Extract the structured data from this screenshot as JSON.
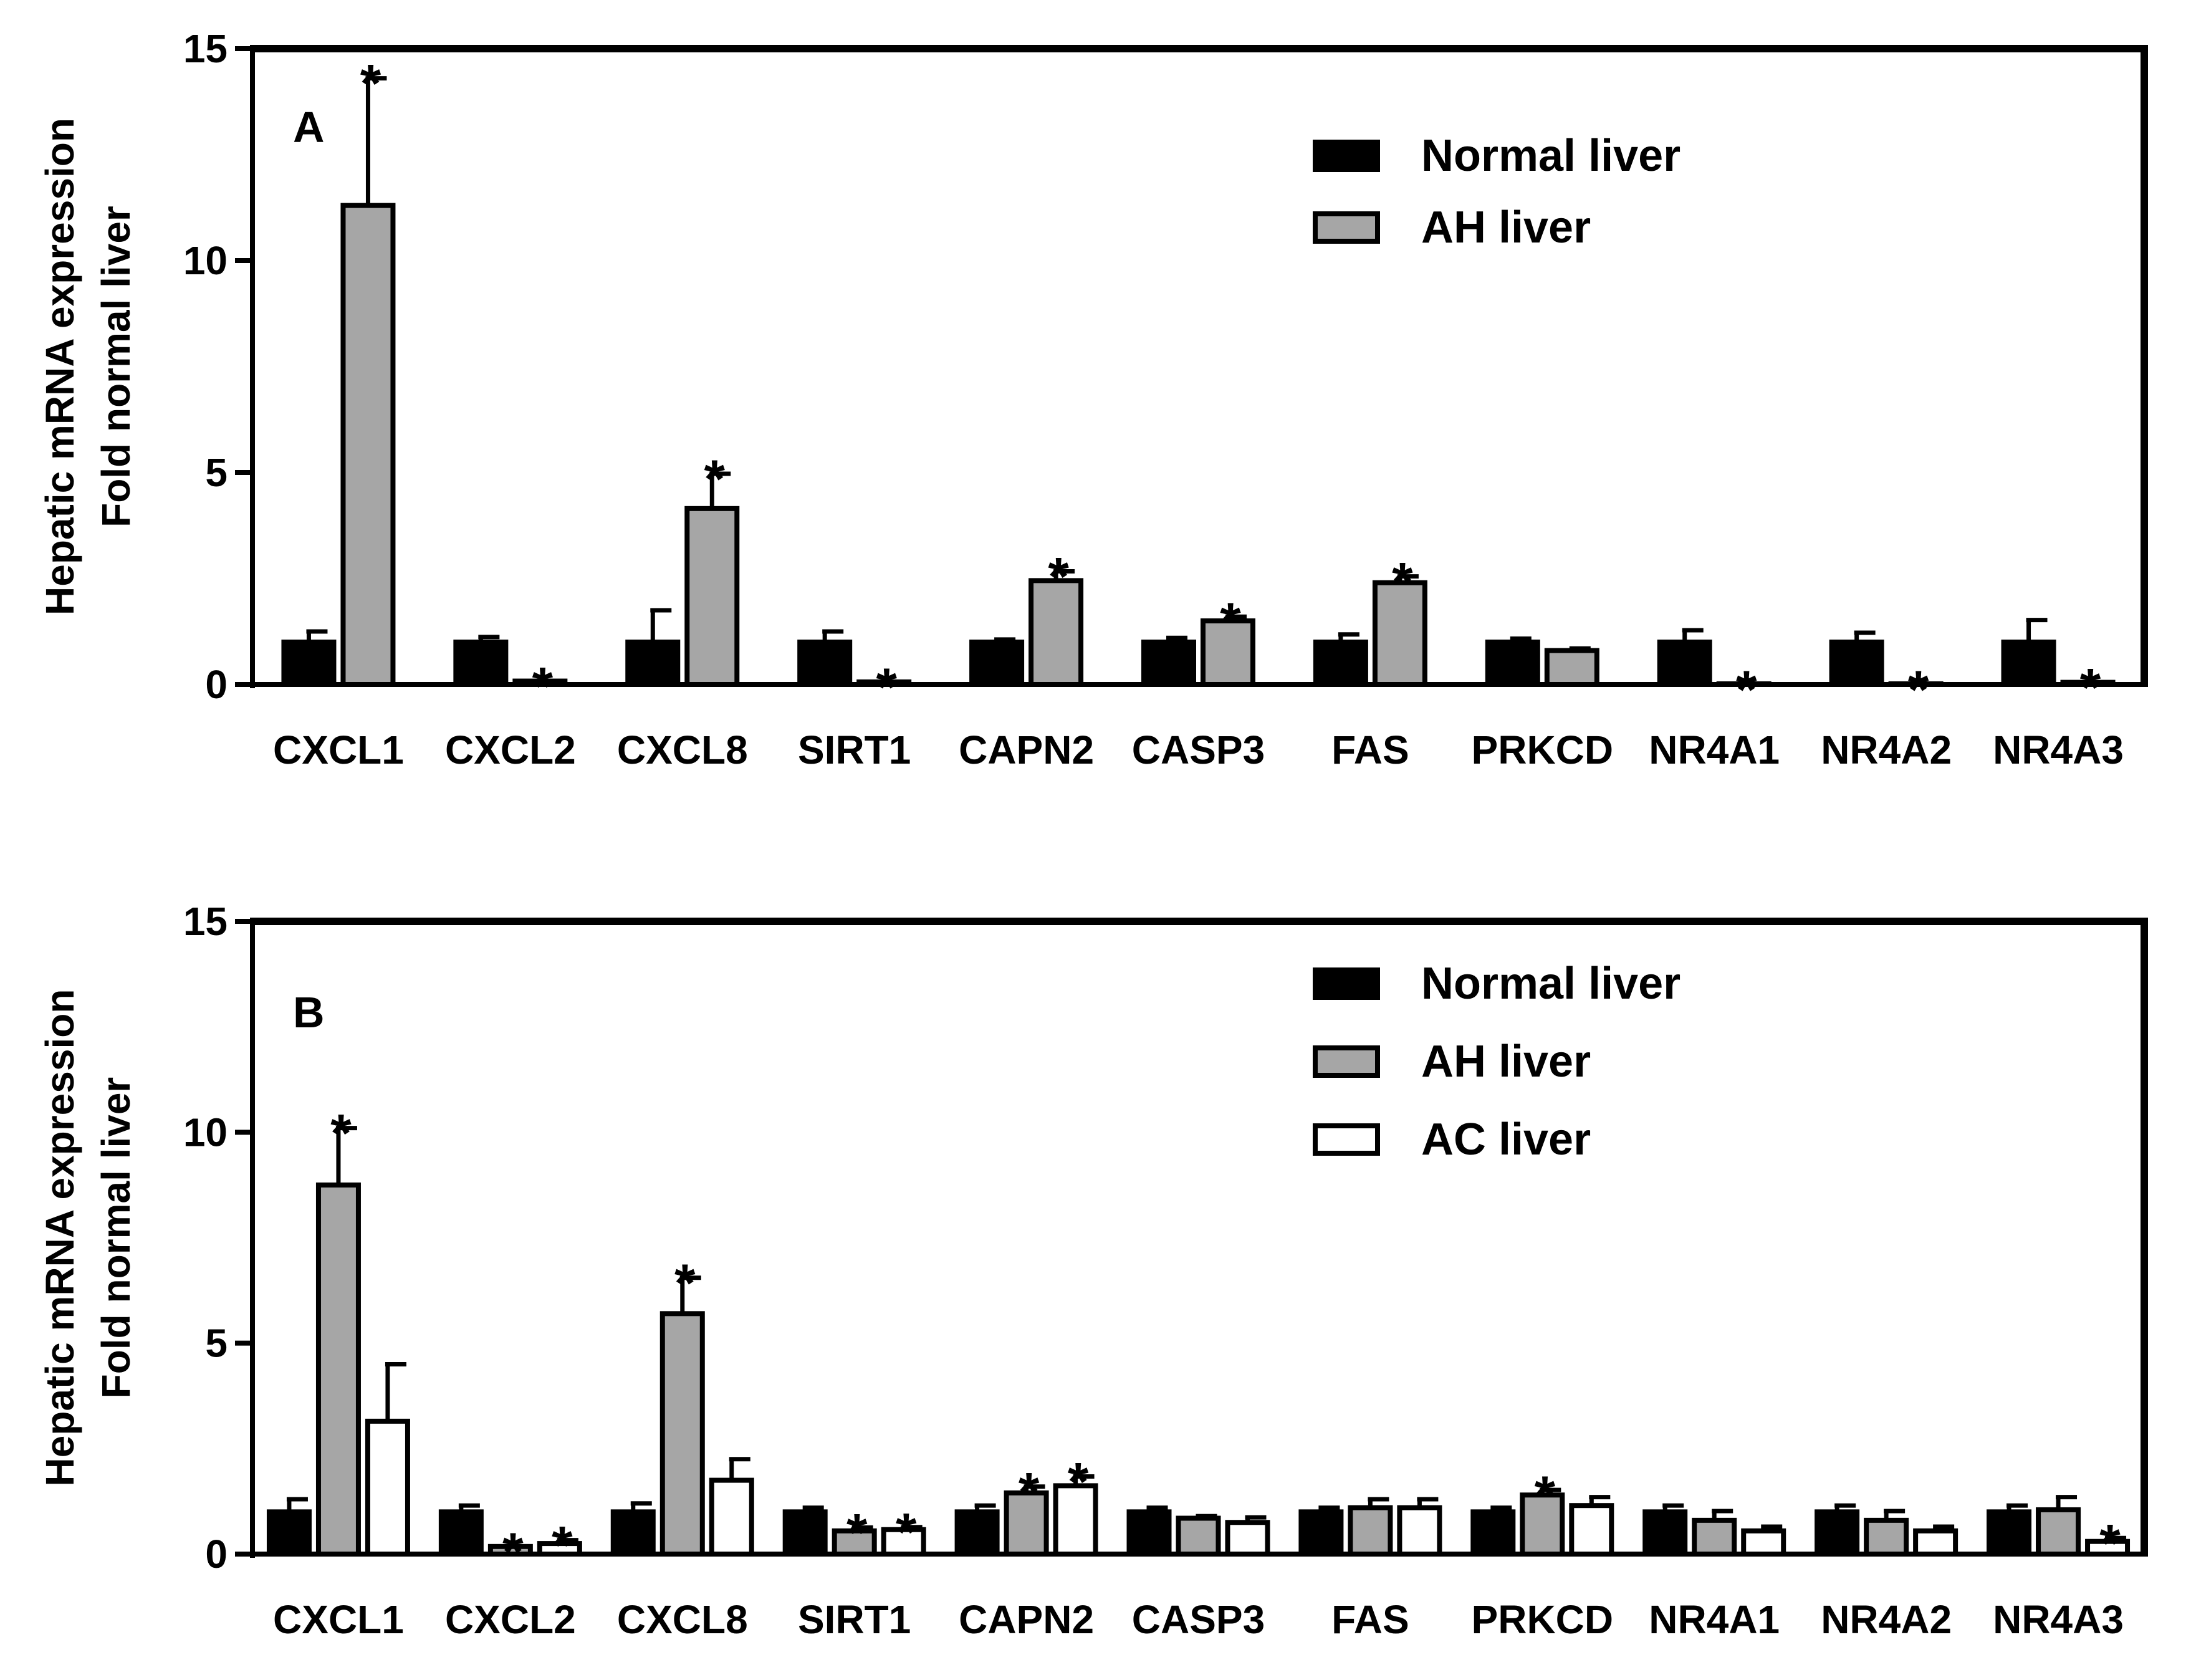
{
  "chart_data": [
    {
      "type": "bar",
      "panel_label": "A",
      "ylabel_line1": "Hepatic mRNA expression",
      "ylabel_line2": "Fold normal liver",
      "ylim": [
        0,
        15
      ],
      "yticks": [
        "0",
        "5",
        "10",
        "15"
      ],
      "categories": [
        "CXCL1",
        "CXCL2",
        "CXCL8",
        "SIRT1",
        "CAPN2",
        "CASP3",
        "FAS",
        "PRKCD",
        "NR4A1",
        "NR4A2",
        "NR4A3"
      ],
      "legend_position": "top-right",
      "series": [
        {
          "name": "Normal liver",
          "color": "#000000",
          "values": [
            1.0,
            1.0,
            1.0,
            1.0,
            1.0,
            1.0,
            1.0,
            1.0,
            1.0,
            1.0,
            1.0
          ],
          "errors": [
            0.25,
            0.12,
            0.75,
            0.25,
            0.06,
            0.1,
            0.18,
            0.08,
            0.28,
            0.22,
            0.52
          ],
          "significant": [
            false,
            false,
            false,
            false,
            false,
            false,
            false,
            false,
            false,
            false,
            false
          ]
        },
        {
          "name": "AH liver",
          "color": "#a6a6a6",
          "values": [
            11.3,
            0.08,
            4.15,
            0.06,
            2.45,
            1.5,
            2.4,
            0.8,
            0.0,
            0.0,
            0.05
          ],
          "errors": [
            3.0,
            0.0,
            0.82,
            0.0,
            0.22,
            0.1,
            0.15,
            0.05,
            0.0,
            0.0,
            0.0
          ],
          "significant": [
            true,
            true,
            true,
            true,
            true,
            true,
            true,
            false,
            true,
            true,
            true
          ]
        }
      ],
      "significance_marker": "*"
    },
    {
      "type": "bar",
      "panel_label": "B",
      "ylabel_line1": "Hepatic mRNA expression",
      "ylabel_line2": "Fold normal liver",
      "ylim": [
        0,
        15
      ],
      "yticks": [
        "0",
        "5",
        "10",
        "15"
      ],
      "categories": [
        "CXCL1",
        "CXCL2",
        "CXCL8",
        "SIRT1",
        "CAPN2",
        "CASP3",
        "FAS",
        "PRKCD",
        "NR4A1",
        "NR4A2",
        "NR4A3"
      ],
      "legend_position": "top-right",
      "series": [
        {
          "name": "Normal liver",
          "color": "#000000",
          "values": [
            1.0,
            1.0,
            1.0,
            1.0,
            1.0,
            1.0,
            1.0,
            1.0,
            1.0,
            1.0,
            1.0
          ],
          "errors": [
            0.3,
            0.15,
            0.2,
            0.1,
            0.15,
            0.1,
            0.1,
            0.1,
            0.15,
            0.15,
            0.15
          ],
          "significant": [
            false,
            false,
            false,
            false,
            false,
            false,
            false,
            false,
            false,
            false,
            false
          ]
        },
        {
          "name": "AH liver",
          "color": "#a6a6a6",
          "values": [
            8.75,
            0.18,
            5.7,
            0.55,
            1.45,
            0.85,
            1.1,
            1.4,
            0.8,
            0.8,
            1.05
          ],
          "errors": [
            1.35,
            0.0,
            0.85,
            0.08,
            0.15,
            0.05,
            0.2,
            0.12,
            0.22,
            0.22,
            0.3
          ],
          "significant": [
            true,
            true,
            true,
            true,
            true,
            false,
            false,
            true,
            false,
            false,
            false
          ]
        },
        {
          "name": "AC liver",
          "color": "#ffffff",
          "values": [
            3.15,
            0.25,
            1.75,
            0.58,
            1.62,
            0.75,
            1.1,
            1.15,
            0.55,
            0.55,
            0.3
          ],
          "errors": [
            1.35,
            0.08,
            0.5,
            0.06,
            0.22,
            0.12,
            0.2,
            0.2,
            0.1,
            0.1,
            0.08
          ],
          "significant": [
            false,
            true,
            false,
            true,
            true,
            false,
            false,
            false,
            false,
            false,
            true
          ]
        }
      ],
      "significance_marker": "*"
    }
  ]
}
